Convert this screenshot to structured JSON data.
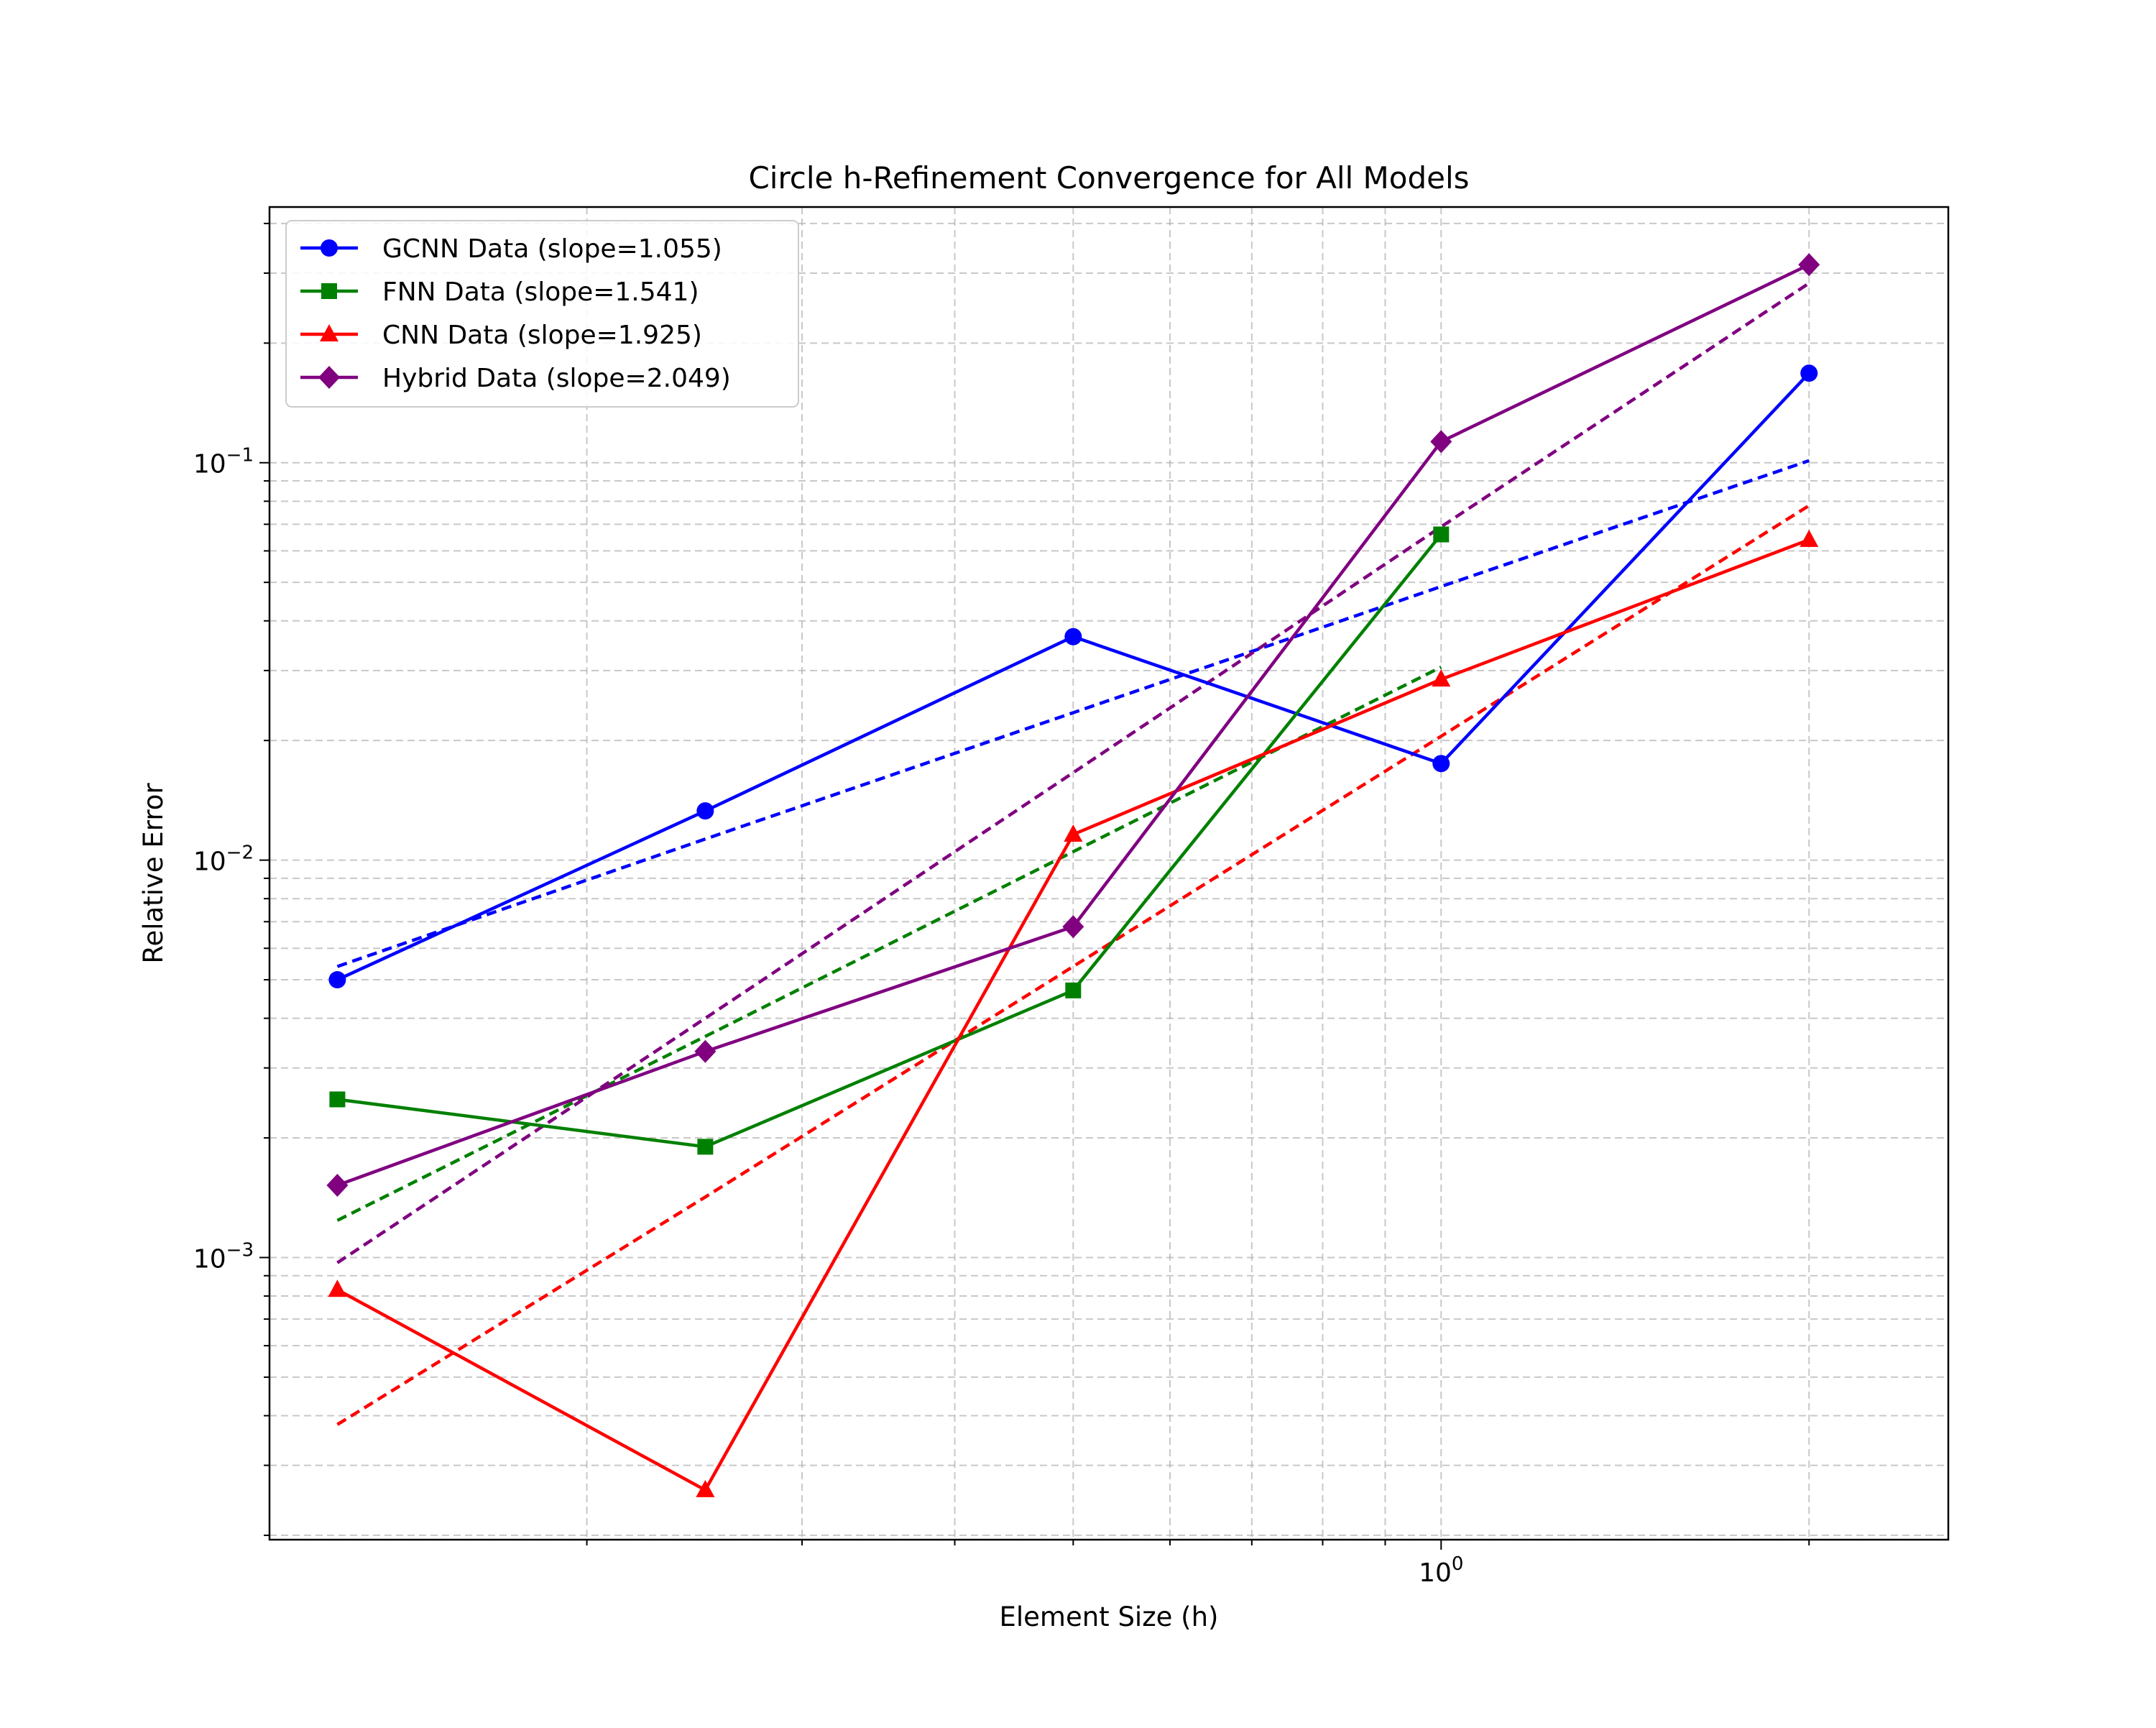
{
  "chart_data": {
    "type": "line",
    "title": "Circle h-Refinement Convergence for All Models",
    "xlabel": "Element Size (h)",
    "ylabel": "Relative Error",
    "x_scale": "log",
    "y_scale": "log",
    "xlim": [
      0.11,
      2.6
    ],
    "ylim": [
      0.000195,
      0.44
    ],
    "grid": true,
    "legend_position": "top-left",
    "x_major_ticks": [
      {
        "value": 1,
        "base": "10",
        "exp": "0"
      }
    ],
    "y_major_ticks": [
      {
        "value": 0.001,
        "base": "10",
        "exp": "−3"
      },
      {
        "value": 0.01,
        "base": "10",
        "exp": "−2"
      },
      {
        "value": 0.1,
        "base": "10",
        "exp": "−1"
      }
    ],
    "x": [
      0.125,
      0.25,
      0.5,
      1.0,
      2.0
    ],
    "series": [
      {
        "name": "GCNN Data (slope=1.055)",
        "color": "#0000ff",
        "marker": "circle",
        "values": [
          0.005,
          0.0133,
          0.0365,
          0.0175,
          0.168
        ],
        "fit": [
          0.0054,
          0.0113,
          0.0235,
          0.0488,
          0.1012
        ]
      },
      {
        "name": "FNN Data (slope=1.541)",
        "color": "#008000",
        "marker": "square",
        "values": [
          0.0025,
          0.0019,
          0.0047,
          0.066,
          null
        ],
        "fit": [
          0.00124,
          0.0036,
          0.0105,
          0.0306,
          null
        ]
      },
      {
        "name": "CNN Data (slope=1.925)",
        "color": "#ff0000",
        "marker": "triangle",
        "values": [
          0.00083,
          0.00026,
          0.0116,
          0.0285,
          0.064
        ],
        "fit": [
          0.00038,
          0.00142,
          0.0054,
          0.0205,
          0.078
        ]
      },
      {
        "name": "Hybrid Data (slope=2.049)",
        "color": "#800080",
        "marker": "diamond",
        "values": [
          0.00152,
          0.0033,
          0.0068,
          0.113,
          0.315
        ],
        "fit": [
          0.00097,
          0.004,
          0.0166,
          0.069,
          0.283
        ]
      }
    ]
  }
}
